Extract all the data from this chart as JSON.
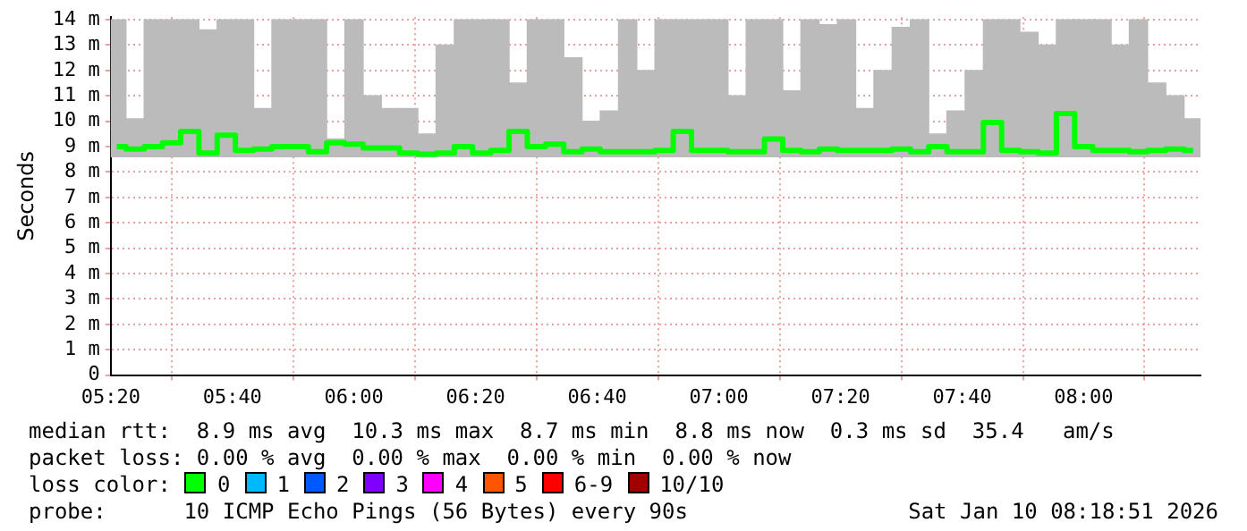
{
  "chart_data": {
    "type": "step",
    "ylabel": "Seconds",
    "legend_title": "loss color:",
    "legend": "bottom",
    "grid": true,
    "x": [
      5.35,
      5.4,
      5.45,
      5.5,
      5.55,
      5.6,
      5.65,
      5.7,
      5.75,
      5.8,
      5.85,
      5.9,
      5.95,
      6,
      6.05,
      6.1,
      6.15,
      6.2,
      6.25,
      6.3,
      6.35,
      6.4,
      6.45,
      6.5,
      6.55,
      6.6,
      6.65,
      6.7,
      6.75,
      6.8,
      6.85,
      6.9,
      6.95,
      7,
      7.05,
      7.1,
      7.15,
      7.2,
      7.25,
      7.3,
      7.35,
      7.4,
      7.45,
      7.5,
      7.55,
      7.6,
      7.65,
      7.7,
      7.75,
      7.8,
      7.85,
      7.9,
      7.95,
      8,
      8.05,
      8.1,
      8.15,
      8.2,
      8.25,
      8.3
    ],
    "xlim": [
      5.3333,
      8.32
    ],
    "xticks": [
      {
        "value": 5.3333,
        "label": "05:20"
      },
      {
        "value": 5.6667,
        "label": "05:40"
      },
      {
        "value": 6,
        "label": "06:00"
      },
      {
        "value": 6.3333,
        "label": "06:20"
      },
      {
        "value": 6.6667,
        "label": "06:40"
      },
      {
        "value": 7,
        "label": "07:00"
      },
      {
        "value": 7.3333,
        "label": "07:20"
      },
      {
        "value": 7.6667,
        "label": "07:40"
      },
      {
        "value": 8,
        "label": "08:00"
      }
    ],
    "ylim": [
      0,
      14.1
    ],
    "yticks": [
      0,
      {
        "value": 1,
        "label": "1 m"
      },
      {
        "value": 2,
        "label": "2 m"
      },
      {
        "value": 3,
        "label": "3 m"
      },
      {
        "value": 4,
        "label": "4 m"
      },
      {
        "value": 5,
        "label": "5 m"
      },
      {
        "value": 6,
        "label": "6 m"
      },
      {
        "value": 7,
        "label": "7 m"
      },
      {
        "value": 8,
        "label": "8 m"
      },
      {
        "value": 9,
        "label": "9 m"
      },
      {
        "value": 10,
        "label": "10 m"
      },
      {
        "value": 11,
        "label": "11 m"
      },
      {
        "value": 12,
        "label": "12 m"
      },
      {
        "value": 13,
        "label": "13 m"
      },
      {
        "value": 14,
        "label": "14 m"
      }
    ],
    "series": [
      {
        "type": "bar",
        "color": "#bbbbbb",
        "base": [
          8.6,
          8.6,
          8.6,
          8.6,
          8.6,
          8.6,
          8.6,
          8.6,
          8.6,
          8.6,
          8.6,
          8.6,
          8.6,
          8.6,
          8.6,
          8.6,
          8.6,
          8.6,
          8.6,
          8.6,
          8.6,
          8.6,
          8.6,
          8.6,
          8.6,
          8.6,
          8.6,
          8.6,
          8.6,
          8.6,
          8.6,
          8.6,
          8.6,
          8.6,
          8.6,
          8.6,
          8.6,
          8.6,
          8.6,
          8.6,
          8.6,
          8.6,
          8.6,
          8.6,
          8.6,
          8.6,
          8.6,
          8.6,
          8.6,
          8.6,
          8.6,
          8.6,
          8.6,
          8.6,
          8.6,
          8.6,
          8.6,
          8.6,
          8.6,
          8.6
        ],
        "values": [
          5.4,
          1.5,
          5.4,
          5.4,
          5.4,
          5.0,
          5.4,
          5.4,
          1.9,
          5.4,
          5.4,
          5.4,
          0.7,
          5.4,
          2.4,
          1.9,
          1.9,
          0.9,
          4.4,
          5.4,
          5.4,
          5.4,
          2.9,
          5.4,
          5.4,
          3.9,
          1.4,
          1.8,
          5.4,
          3.4,
          5.4,
          5.4,
          5.4,
          5.4,
          2.4,
          5.4,
          5.4,
          2.6,
          5.4,
          5.2,
          5.4,
          1.9,
          3.4,
          5.1,
          5.4,
          0.9,
          1.8,
          3.4,
          5.4,
          5.4,
          4.9,
          4.4,
          5.4,
          5.4,
          5.4,
          4.4,
          5.4,
          2.9,
          2.4,
          1.5
        ]
      },
      {
        "name": "0",
        "color": "#00ff00",
        "values": [
          9.0,
          8.9,
          9.0,
          9.15,
          9.6,
          8.75,
          9.45,
          8.85,
          8.9,
          9.0,
          9.0,
          8.8,
          9.15,
          9.1,
          8.95,
          8.95,
          8.75,
          8.7,
          8.75,
          9.0,
          8.75,
          8.85,
          9.6,
          9.0,
          9.1,
          8.8,
          8.9,
          8.8,
          8.8,
          8.8,
          8.85,
          9.6,
          8.85,
          8.85,
          8.8,
          8.8,
          9.3,
          8.85,
          8.8,
          8.9,
          8.85,
          8.85,
          8.85,
          8.9,
          8.8,
          9.0,
          8.8,
          8.8,
          9.95,
          8.85,
          8.8,
          8.75,
          10.3,
          9.0,
          8.85,
          8.85,
          8.8,
          8.85,
          8.9,
          8.85
        ]
      },
      {
        "name": "1",
        "color": "#00b8ff",
        "values": [
          null,
          null,
          null,
          null,
          null,
          null,
          null,
          null,
          null,
          null,
          null,
          null,
          null,
          null,
          null,
          null,
          null,
          null,
          null,
          null,
          null,
          null,
          null,
          null,
          null,
          null,
          null,
          null,
          null,
          null,
          null,
          null,
          null,
          null,
          null,
          null,
          null,
          null,
          null,
          null,
          null,
          null,
          null,
          null,
          null,
          null,
          null,
          null,
          null,
          null,
          null,
          null,
          null,
          null,
          null,
          null,
          null,
          null,
          null,
          null
        ]
      },
      {
        "name": "2",
        "color": "#0059ff",
        "values": [
          null,
          null,
          null,
          null,
          null,
          null,
          null,
          null,
          null,
          null,
          null,
          null,
          null,
          null,
          null,
          null,
          null,
          null,
          null,
          null,
          null,
          null,
          null,
          null,
          null,
          null,
          null,
          null,
          null,
          null,
          null,
          null,
          null,
          null,
          null,
          null,
          null,
          null,
          null,
          null,
          null,
          null,
          null,
          null,
          null,
          null,
          null,
          null,
          null,
          null,
          null,
          null,
          null,
          null,
          null,
          null,
          null,
          null,
          null,
          null
        ]
      },
      {
        "name": "3",
        "color": "#7e00ff",
        "values": [
          null,
          null,
          null,
          null,
          null,
          null,
          null,
          null,
          null,
          null,
          null,
          null,
          null,
          null,
          null,
          null,
          null,
          null,
          null,
          null,
          null,
          null,
          null,
          null,
          null,
          null,
          null,
          null,
          null,
          null,
          null,
          null,
          null,
          null,
          null,
          null,
          null,
          null,
          null,
          null,
          null,
          null,
          null,
          null,
          null,
          null,
          null,
          null,
          null,
          null,
          null,
          null,
          null,
          null,
          null,
          null,
          null,
          null,
          null,
          null
        ]
      },
      {
        "name": "4",
        "color": "#ff00ff",
        "values": [
          null,
          null,
          null,
          null,
          null,
          null,
          null,
          null,
          null,
          null,
          null,
          null,
          null,
          null,
          null,
          null,
          null,
          null,
          null,
          null,
          null,
          null,
          null,
          null,
          null,
          null,
          null,
          null,
          null,
          null,
          null,
          null,
          null,
          null,
          null,
          null,
          null,
          null,
          null,
          null,
          null,
          null,
          null,
          null,
          null,
          null,
          null,
          null,
          null,
          null,
          null,
          null,
          null,
          null,
          null,
          null,
          null,
          null,
          null,
          null
        ]
      },
      {
        "name": "5",
        "color": "#ff5500",
        "values": [
          null,
          null,
          null,
          null,
          null,
          null,
          null,
          null,
          null,
          null,
          null,
          null,
          null,
          null,
          null,
          null,
          null,
          null,
          null,
          null,
          null,
          null,
          null,
          null,
          null,
          null,
          null,
          null,
          null,
          null,
          null,
          null,
          null,
          null,
          null,
          null,
          null,
          null,
          null,
          null,
          null,
          null,
          null,
          null,
          null,
          null,
          null,
          null,
          null,
          null,
          null,
          null,
          null,
          null,
          null,
          null,
          null,
          null,
          null,
          null
        ]
      },
      {
        "name": "6-9",
        "color": "#ff0000",
        "values": [
          null,
          null,
          null,
          null,
          null,
          null,
          null,
          null,
          null,
          null,
          null,
          null,
          null,
          null,
          null,
          null,
          null,
          null,
          null,
          null,
          null,
          null,
          null,
          null,
          null,
          null,
          null,
          null,
          null,
          null,
          null,
          null,
          null,
          null,
          null,
          null,
          null,
          null,
          null,
          null,
          null,
          null,
          null,
          null,
          null,
          null,
          null,
          null,
          null,
          null,
          null,
          null,
          null,
          null,
          null,
          null,
          null,
          null,
          null,
          null
        ]
      },
      {
        "name": "10/10",
        "color": "#a10000",
        "values": [
          null,
          null,
          null,
          null,
          null,
          null,
          null,
          null,
          null,
          null,
          null,
          null,
          null,
          null,
          null,
          null,
          null,
          null,
          null,
          null,
          null,
          null,
          null,
          null,
          null,
          null,
          null,
          null,
          null,
          null,
          null,
          null,
          null,
          null,
          null,
          null,
          null,
          null,
          null,
          null,
          null,
          null,
          null,
          null,
          null,
          null,
          null,
          null,
          null,
          null,
          null,
          null,
          null,
          null,
          null,
          null,
          null,
          null,
          null,
          null
        ]
      }
    ],
    "annotations": [
      "median rtt:  8.9 ms avg  10.3 ms max  8.7 ms min  8.8 ms now  0.3 ms sd  35.4   am/s",
      "packet loss: 0.00 % avg  0.00 % max  0.00 % min  0.00 % now",
      "probe:      10 ICMP Echo Pings (56 Bytes) every 90s",
      "Sat Jan 10 08:18:51 2026"
    ]
  }
}
